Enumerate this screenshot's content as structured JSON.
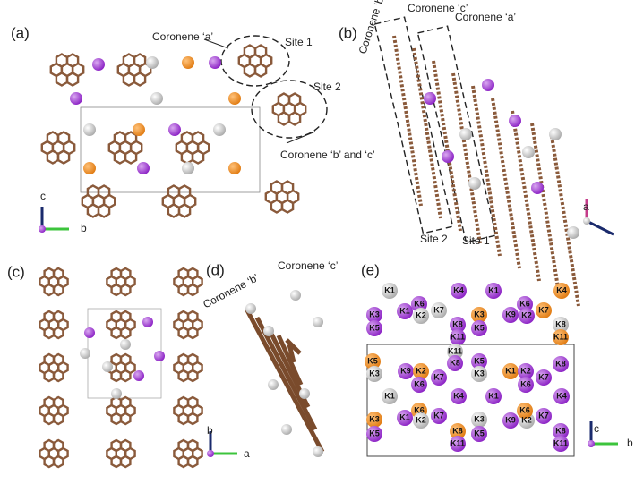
{
  "panels": [
    {
      "label": "(a)",
      "annotations": [
        "Coronene ‘a’",
        "Site 1",
        "Site 2",
        "Coronene ‘b’ and ‘c’"
      ],
      "axes": [
        "c",
        "b"
      ]
    },
    {
      "label": "(b)",
      "annotations": [
        "Coronene ‘b’",
        "Coronene ‘c’",
        "Coronene ‘a’",
        "Site 2",
        "Site 1"
      ],
      "axes": [
        "a"
      ]
    },
    {
      "label": "(c)",
      "axes": [
        "b",
        "a"
      ]
    },
    {
      "label": "(d)",
      "annotations": [
        "Coronene ‘b’",
        "Coronene ‘c’"
      ]
    },
    {
      "label": "(e)",
      "axes": [
        "c",
        "b"
      ],
      "atoms": [
        "K1",
        "K4",
        "K1",
        "K4",
        "K6",
        "K7",
        "K6",
        "K7",
        "K3",
        "K1",
        "K2",
        "K3",
        "K9",
        "K2",
        "K8",
        "K8",
        "K5",
        "K5",
        "K11",
        "K11",
        "K11",
        "K8",
        "K5",
        "K5",
        "K8",
        "K3",
        "K9",
        "K2",
        "K6",
        "K7",
        "K3",
        "K1",
        "K2",
        "K6",
        "K7",
        "K1",
        "K4",
        "K1",
        "K4",
        "K6",
        "K2",
        "K1",
        "K7",
        "K3",
        "K5",
        "K3",
        "K5",
        "K8",
        "K11",
        "K9",
        "K2",
        "K6",
        "K7",
        "K8",
        "K11"
      ]
    }
  ]
}
